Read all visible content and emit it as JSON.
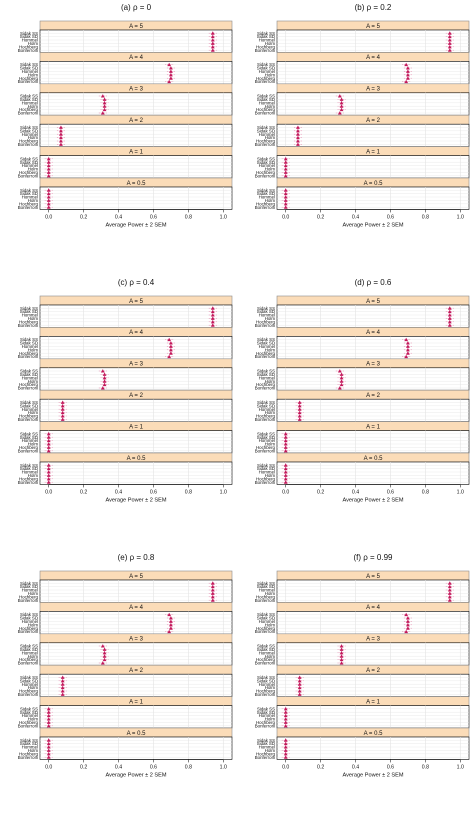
{
  "chart_data": [
    {
      "type": "scatter",
      "title": "(a) ρ = 0",
      "xlabel": "Average Power ± 2 SEM",
      "xlim": [
        -0.05,
        1.05
      ],
      "xticks": [
        "0.0",
        "0.2",
        "0.4",
        "0.6",
        "0.8",
        "1.0"
      ],
      "panels": [
        {
          "label": "A = 5",
          "categories": [
            "Sidak SS",
            "Sidak SD",
            "Hommel",
            "Holm",
            "Hochberg",
            "Bonferroni"
          ],
          "values": [
            0.94,
            0.94,
            0.94,
            0.94,
            0.94,
            0.94
          ]
        },
        {
          "label": "A = 4",
          "categories": [
            "Sidak SS",
            "Sidak SD",
            "Hommel",
            "Holm",
            "Hochberg",
            "Bonferroni"
          ],
          "values": [
            0.69,
            0.7,
            0.7,
            0.7,
            0.7,
            0.69
          ]
        },
        {
          "label": "A = 3",
          "categories": [
            "Sidak SS",
            "Sidak SD",
            "Hommel",
            "Holm",
            "Hochberg",
            "Bonferroni"
          ],
          "values": [
            0.31,
            0.32,
            0.32,
            0.32,
            0.32,
            0.31
          ]
        },
        {
          "label": "A = 2",
          "categories": [
            "Sidak SS",
            "Sidak SD",
            "Hommel",
            "Holm",
            "Hochberg",
            "Bonferroni"
          ],
          "values": [
            0.07,
            0.07,
            0.07,
            0.07,
            0.07,
            0.07
          ]
        },
        {
          "label": "A = 1",
          "categories": [
            "Sidak SS",
            "Sidak SD",
            "Hommel",
            "Holm",
            "Hochberg",
            "Bonferroni"
          ],
          "values": [
            0.0,
            0.0,
            0.0,
            0.0,
            0.0,
            0.0
          ]
        },
        {
          "label": "A = 0.5",
          "categories": [
            "Sidak SS",
            "Sidak SD",
            "Hommel",
            "Holm",
            "Hochberg",
            "Bonferroni"
          ],
          "values": [
            0.0,
            0.0,
            0.0,
            0.0,
            0.0,
            0.0
          ]
        }
      ]
    },
    {
      "type": "scatter",
      "title": "(b) ρ = 0.2",
      "xlabel": "Average Power ± 2 SEM",
      "xlim": [
        -0.05,
        1.05
      ],
      "xticks": [
        "0.0",
        "0.2",
        "0.4",
        "0.6",
        "0.8",
        "1.0"
      ],
      "panels": [
        {
          "label": "A = 5",
          "categories": [
            "Sidak SS",
            "Sidak SD",
            "Hommel",
            "Holm",
            "Hochberg",
            "Bonferroni"
          ],
          "values": [
            0.94,
            0.94,
            0.94,
            0.94,
            0.94,
            0.94
          ]
        },
        {
          "label": "A = 4",
          "categories": [
            "Sidak SS",
            "Sidak SD",
            "Hommel",
            "Holm",
            "Hochberg",
            "Bonferroni"
          ],
          "values": [
            0.69,
            0.7,
            0.7,
            0.7,
            0.7,
            0.69
          ]
        },
        {
          "label": "A = 3",
          "categories": [
            "Sidak SS",
            "Sidak SD",
            "Hommel",
            "Holm",
            "Hochberg",
            "Bonferroni"
          ],
          "values": [
            0.31,
            0.32,
            0.32,
            0.32,
            0.32,
            0.31
          ]
        },
        {
          "label": "A = 2",
          "categories": [
            "Sidak SS",
            "Sidak SD",
            "Hommel",
            "Holm",
            "Hochberg",
            "Bonferroni"
          ],
          "values": [
            0.07,
            0.07,
            0.07,
            0.07,
            0.07,
            0.07
          ]
        },
        {
          "label": "A = 1",
          "categories": [
            "Sidak SS",
            "Sidak SD",
            "Hommel",
            "Holm",
            "Hochberg",
            "Bonferroni"
          ],
          "values": [
            0.0,
            0.0,
            0.0,
            0.0,
            0.0,
            0.0
          ]
        },
        {
          "label": "A = 0.5",
          "categories": [
            "Sidak SS",
            "Sidak SD",
            "Hommel",
            "Holm",
            "Hochberg",
            "Bonferroni"
          ],
          "values": [
            0.0,
            0.0,
            0.0,
            0.0,
            0.0,
            0.0
          ]
        }
      ]
    },
    {
      "type": "scatter",
      "title": "(c) ρ = 0.4",
      "xlabel": "Average Power ± 2 SEM",
      "xlim": [
        -0.05,
        1.05
      ],
      "xticks": [
        "0.0",
        "0.2",
        "0.4",
        "0.6",
        "0.8",
        "1.0"
      ],
      "panels": [
        {
          "label": "A = 5",
          "categories": [
            "Sidak SS",
            "Sidak SD",
            "Hommel",
            "Holm",
            "Hochberg",
            "Bonferroni"
          ],
          "values": [
            0.94,
            0.94,
            0.94,
            0.94,
            0.94,
            0.94
          ]
        },
        {
          "label": "A = 4",
          "categories": [
            "Sidak SS",
            "Sidak SD",
            "Hommel",
            "Holm",
            "Hochberg",
            "Bonferroni"
          ],
          "values": [
            0.69,
            0.7,
            0.7,
            0.7,
            0.7,
            0.69
          ]
        },
        {
          "label": "A = 3",
          "categories": [
            "Sidak SS",
            "Sidak SD",
            "Hommel",
            "Holm",
            "Hochberg",
            "Bonferroni"
          ],
          "values": [
            0.31,
            0.32,
            0.32,
            0.32,
            0.32,
            0.31
          ]
        },
        {
          "label": "A = 2",
          "categories": [
            "Sidak SS",
            "Sidak SD",
            "Hommel",
            "Holm",
            "Hochberg",
            "Bonferroni"
          ],
          "values": [
            0.08,
            0.08,
            0.08,
            0.08,
            0.08,
            0.08
          ]
        },
        {
          "label": "A = 1",
          "categories": [
            "Sidak SS",
            "Sidak SD",
            "Hommel",
            "Holm",
            "Hochberg",
            "Bonferroni"
          ],
          "values": [
            0.0,
            0.0,
            0.0,
            0.0,
            0.0,
            0.0
          ]
        },
        {
          "label": "A = 0.5",
          "categories": [
            "Sidak SS",
            "Sidak SD",
            "Hommel",
            "Holm",
            "Hochberg",
            "Bonferroni"
          ],
          "values": [
            0.0,
            0.0,
            0.0,
            0.0,
            0.0,
            0.0
          ]
        }
      ]
    },
    {
      "type": "scatter",
      "title": "(d) ρ = 0.6",
      "xlabel": "Average Power ± 2 SEM",
      "xlim": [
        -0.05,
        1.05
      ],
      "xticks": [
        "0.0",
        "0.2",
        "0.4",
        "0.6",
        "0.8",
        "1.0"
      ],
      "panels": [
        {
          "label": "A = 5",
          "categories": [
            "Sidak SS",
            "Sidak SD",
            "Hommel",
            "Holm",
            "Hochberg",
            "Bonferroni"
          ],
          "values": [
            0.94,
            0.94,
            0.94,
            0.94,
            0.94,
            0.94
          ]
        },
        {
          "label": "A = 4",
          "categories": [
            "Sidak SS",
            "Sidak SD",
            "Hommel",
            "Holm",
            "Hochberg",
            "Bonferroni"
          ],
          "values": [
            0.69,
            0.7,
            0.7,
            0.7,
            0.7,
            0.69
          ]
        },
        {
          "label": "A = 3",
          "categories": [
            "Sidak SS",
            "Sidak SD",
            "Hommel",
            "Holm",
            "Hochberg",
            "Bonferroni"
          ],
          "values": [
            0.31,
            0.32,
            0.32,
            0.32,
            0.32,
            0.31
          ]
        },
        {
          "label": "A = 2",
          "categories": [
            "Sidak SS",
            "Sidak SD",
            "Hommel",
            "Holm",
            "Hochberg",
            "Bonferroni"
          ],
          "values": [
            0.08,
            0.08,
            0.08,
            0.08,
            0.08,
            0.08
          ]
        },
        {
          "label": "A = 1",
          "categories": [
            "Sidak SS",
            "Sidak SD",
            "Hommel",
            "Holm",
            "Hochberg",
            "Bonferroni"
          ],
          "values": [
            0.0,
            0.0,
            0.0,
            0.0,
            0.0,
            0.0
          ]
        },
        {
          "label": "A = 0.5",
          "categories": [
            "Sidak SS",
            "Sidak SD",
            "Hommel",
            "Holm",
            "Hochberg",
            "Bonferroni"
          ],
          "values": [
            0.0,
            0.0,
            0.0,
            0.0,
            0.0,
            0.0
          ]
        }
      ]
    },
    {
      "type": "scatter",
      "title": "(e) ρ = 0.8",
      "xlabel": "Average Power ± 2 SEM",
      "xlim": [
        -0.05,
        1.05
      ],
      "xticks": [
        "0.0",
        "0.2",
        "0.4",
        "0.6",
        "0.8",
        "1.0"
      ],
      "panels": [
        {
          "label": "A = 5",
          "categories": [
            "Sidak SS",
            "Sidak SD",
            "Hommel",
            "Holm",
            "Hochberg",
            "Bonferroni"
          ],
          "values": [
            0.94,
            0.94,
            0.94,
            0.94,
            0.94,
            0.94
          ]
        },
        {
          "label": "A = 4",
          "categories": [
            "Sidak SS",
            "Sidak SD",
            "Hommel",
            "Holm",
            "Hochberg",
            "Bonferroni"
          ],
          "values": [
            0.69,
            0.7,
            0.7,
            0.7,
            0.7,
            0.69
          ]
        },
        {
          "label": "A = 3",
          "categories": [
            "Sidak SS",
            "Sidak SD",
            "Hommel",
            "Holm",
            "Hochberg",
            "Bonferroni"
          ],
          "values": [
            0.31,
            0.32,
            0.32,
            0.32,
            0.32,
            0.31
          ]
        },
        {
          "label": "A = 2",
          "categories": [
            "Sidak SS",
            "Sidak SD",
            "Hommel",
            "Holm",
            "Hochberg",
            "Bonferroni"
          ],
          "values": [
            0.08,
            0.08,
            0.08,
            0.08,
            0.08,
            0.08
          ]
        },
        {
          "label": "A = 1",
          "categories": [
            "Sidak SS",
            "Sidak SD",
            "Hommel",
            "Holm",
            "Hochberg",
            "Bonferroni"
          ],
          "values": [
            0.0,
            0.0,
            0.0,
            0.0,
            0.0,
            0.0
          ]
        },
        {
          "label": "A = 0.5",
          "categories": [
            "Sidak SS",
            "Sidak SD",
            "Hommel",
            "Holm",
            "Hochberg",
            "Bonferroni"
          ],
          "values": [
            0.0,
            0.0,
            0.0,
            0.0,
            0.0,
            0.0
          ]
        }
      ]
    },
    {
      "type": "scatter",
      "title": "(f) ρ = 0.99",
      "xlabel": "Average Power ± 2 SEM",
      "xlim": [
        -0.05,
        1.05
      ],
      "xticks": [
        "0.0",
        "0.2",
        "0.4",
        "0.6",
        "0.8",
        "1.0"
      ],
      "panels": [
        {
          "label": "A = 5",
          "categories": [
            "Sidak SS",
            "Sidak SD",
            "Hommel",
            "Holm",
            "Hochberg",
            "Bonferroni"
          ],
          "values": [
            0.94,
            0.94,
            0.94,
            0.94,
            0.94,
            0.94
          ]
        },
        {
          "label": "A = 4",
          "categories": [
            "Sidak SS",
            "Sidak SD",
            "Hommel",
            "Holm",
            "Hochberg",
            "Bonferroni"
          ],
          "values": [
            0.69,
            0.7,
            0.7,
            0.7,
            0.7,
            0.69
          ]
        },
        {
          "label": "A = 3",
          "categories": [
            "Sidak SS",
            "Sidak SD",
            "Hommel",
            "Holm",
            "Hochberg",
            "Bonferroni"
          ],
          "values": [
            0.32,
            0.32,
            0.32,
            0.32,
            0.32,
            0.32
          ]
        },
        {
          "label": "A = 2",
          "categories": [
            "Sidak SS",
            "Sidak SD",
            "Hommel",
            "Holm",
            "Hochberg",
            "Bonferroni"
          ],
          "values": [
            0.08,
            0.08,
            0.08,
            0.08,
            0.08,
            0.08
          ]
        },
        {
          "label": "A = 1",
          "categories": [
            "Sidak SS",
            "Sidak SD",
            "Hommel",
            "Holm",
            "Hochberg",
            "Bonferroni"
          ],
          "values": [
            0.0,
            0.0,
            0.0,
            0.0,
            0.0,
            0.0
          ]
        },
        {
          "label": "A = 0.5",
          "categories": [
            "Sidak SS",
            "Sidak SD",
            "Hommel",
            "Holm",
            "Hochberg",
            "Bonferroni"
          ],
          "values": [
            0.0,
            0.0,
            0.0,
            0.0,
            0.0,
            0.0
          ]
        }
      ]
    }
  ],
  "colors": {
    "strip_fill": "#fbdcb8",
    "strip_border": "#8c8c8c",
    "marker": "#c3185b",
    "marker_light": "#e06b9a",
    "grid": "#e3e3e3",
    "panel_border": "#000000",
    "text": "#111111"
  }
}
